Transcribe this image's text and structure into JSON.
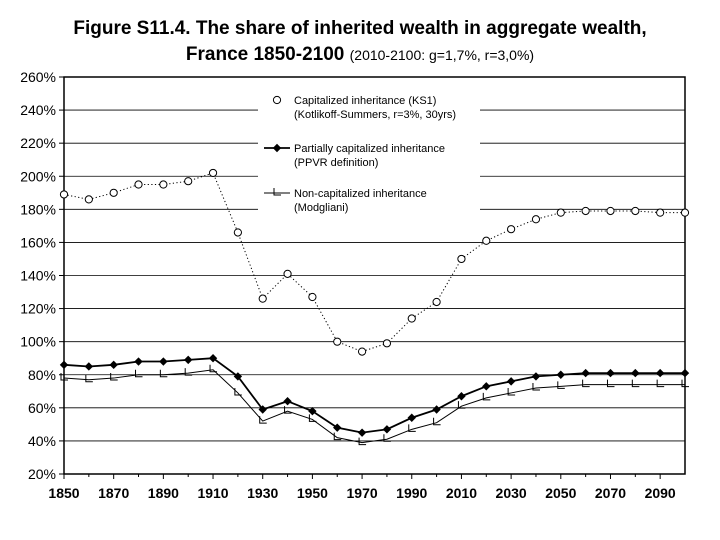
{
  "chart_data": {
    "type": "line",
    "title": "Figure S11.4. The share of inherited wealth in aggregate wealth,",
    "subtitle_main": "France 1850-2100",
    "subtitle_note": "(2010-2100: g=1,7%, r=3,0%)",
    "xlabel": "",
    "ylabel": "",
    "xlim": [
      1850,
      2100
    ],
    "ylim": [
      0.2,
      2.6
    ],
    "x_ticks": [
      1850,
      1870,
      1890,
      1910,
      1930,
      1950,
      1970,
      1990,
      2010,
      2030,
      2050,
      2070,
      2090
    ],
    "x_tick_labels": [
      "1850",
      "1870",
      "1890",
      "1910",
      "1930",
      "1950",
      "1970",
      "1990",
      "2010",
      "2030",
      "2050",
      "2070",
      "2090"
    ],
    "y_ticks": [
      0.2,
      0.4,
      0.6,
      0.8,
      1.0,
      1.2,
      1.4,
      1.6,
      1.8,
      2.0,
      2.2,
      2.4,
      2.6
    ],
    "y_tick_labels": [
      "20%",
      "40%",
      "60%",
      "80%",
      "100%",
      "120%",
      "140%",
      "160%",
      "180%",
      "200%",
      "220%",
      "240%",
      "260%"
    ],
    "grid": "horizontal",
    "legend_position": "top-center",
    "x": [
      1850,
      1860,
      1870,
      1880,
      1890,
      1900,
      1910,
      1920,
      1930,
      1940,
      1950,
      1960,
      1970,
      1980,
      1990,
      2000,
      2010,
      2020,
      2030,
      2040,
      2050,
      2060,
      2070,
      2080,
      2090,
      2100
    ],
    "series": [
      {
        "name": "Capitalized inheritance (KS1)",
        "name_line2": "(Kotlikoff-Summers, r=3%, 30yrs)",
        "marker": "circle",
        "style": "dotted",
        "values": [
          1.89,
          1.86,
          1.9,
          1.95,
          1.95,
          1.97,
          2.02,
          1.66,
          1.26,
          1.41,
          1.27,
          1.0,
          0.94,
          0.99,
          1.14,
          1.24,
          1.5,
          1.61,
          1.68,
          1.74,
          1.78,
          1.79,
          1.79,
          1.79,
          1.78,
          1.78
        ]
      },
      {
        "name": "Partially capitalized inheritance",
        "name_line2": "(PPVR definition)",
        "marker": "diamond",
        "style": "solid",
        "values": [
          0.86,
          0.85,
          0.86,
          0.88,
          0.88,
          0.89,
          0.9,
          0.79,
          0.59,
          0.64,
          0.58,
          0.48,
          0.45,
          0.47,
          0.54,
          0.59,
          0.67,
          0.73,
          0.76,
          0.79,
          0.8,
          0.81,
          0.81,
          0.81,
          0.81,
          0.81
        ]
      },
      {
        "name": "Non-capitalized inheritance",
        "name_line2": "(Modgliani)",
        "marker": "L",
        "style": "solid",
        "values": [
          0.78,
          0.77,
          0.78,
          0.8,
          0.8,
          0.81,
          0.83,
          0.69,
          0.52,
          0.58,
          0.53,
          0.42,
          0.39,
          0.41,
          0.47,
          0.51,
          0.61,
          0.66,
          0.69,
          0.72,
          0.73,
          0.74,
          0.74,
          0.74,
          0.74,
          0.74
        ]
      }
    ]
  }
}
